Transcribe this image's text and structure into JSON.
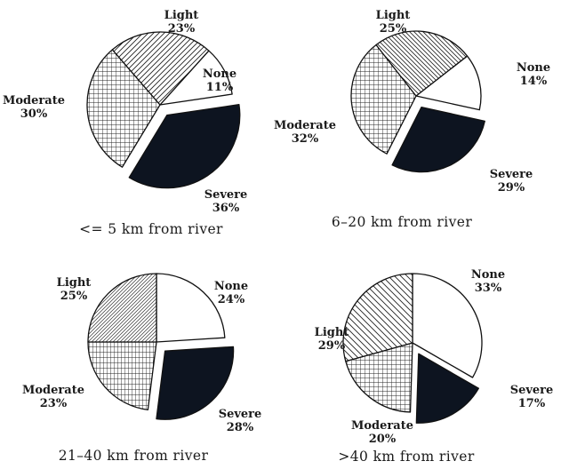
{
  "chart_data": [
    {
      "type": "pie",
      "title": "<= 5 km from river",
      "slices": [
        {
          "label": "None",
          "value": 11,
          "pct": "11%"
        },
        {
          "label": "Severe",
          "value": 36,
          "pct": "36%",
          "exploded": true
        },
        {
          "label": "Moderate",
          "value": 30,
          "pct": "30%"
        },
        {
          "label": "Light",
          "value": 23,
          "pct": "23%"
        }
      ]
    },
    {
      "type": "pie",
      "title": "6–20 km from river",
      "slices": [
        {
          "label": "None",
          "value": 14,
          "pct": "14%"
        },
        {
          "label": "Severe",
          "value": 29,
          "pct": "29%",
          "exploded": true
        },
        {
          "label": "Moderate",
          "value": 32,
          "pct": "32%"
        },
        {
          "label": "Light",
          "value": 25,
          "pct": "25%"
        }
      ]
    },
    {
      "type": "pie",
      "title": "21–40 km from river",
      "slices": [
        {
          "label": "None",
          "value": 24,
          "pct": "24%"
        },
        {
          "label": "Severe",
          "value": 28,
          "pct": "28%",
          "exploded": true
        },
        {
          "label": "Moderate",
          "value": 23,
          "pct": "23%"
        },
        {
          "label": "Light",
          "value": 25,
          "pct": "25%"
        }
      ]
    },
    {
      "type": "pie",
      "title": ">40 km from river",
      "slices": [
        {
          "label": "None",
          "value": 33,
          "pct": "33%"
        },
        {
          "label": "Severe",
          "value": 17,
          "pct": "17%",
          "exploded": true
        },
        {
          "label": "Moderate",
          "value": 20,
          "pct": "20%"
        },
        {
          "label": "Light",
          "value": 29,
          "pct": "29%"
        }
      ]
    }
  ],
  "fill_styles": {
    "None": "solid-white",
    "Light": "diagonal-hatch",
    "Moderate": "crosshatch-grid",
    "Severe": "solid-dark"
  },
  "colors": {
    "ink": "#111111",
    "severe_fill": "#0d1420",
    "background": "#ffffff"
  }
}
